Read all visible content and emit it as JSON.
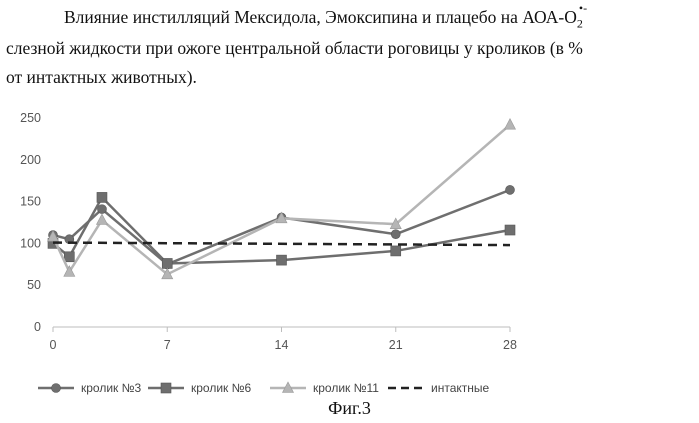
{
  "caption": {
    "line1_main": "Влияние инстилляций Мексидола, Эмоксипина и плацебо на АОА-О",
    "line1_sub": "2",
    "line1_sup": "•-",
    "line2": "слезной жидкости при ожоге центральной области роговицы у кроликов (в %",
    "line3": "от интактных животных)."
  },
  "figure_label": "Фиг.3",
  "chart_data": {
    "type": "line",
    "x": [
      0,
      1,
      3,
      7,
      14,
      21,
      28
    ],
    "xticks": [
      0,
      7,
      14,
      21,
      28
    ],
    "yticks": [
      0,
      50,
      100,
      150,
      200,
      250
    ],
    "xlim": [
      0,
      28
    ],
    "ylim": [
      0,
      250
    ],
    "grid": false,
    "legend_position": "bottom",
    "series": [
      {
        "name": "кролик №3",
        "marker": "circle",
        "color": "#6f6f6f",
        "dash": "solid",
        "points": [
          [
            0,
            110
          ],
          [
            1,
            105
          ],
          [
            3,
            141
          ],
          [
            7,
            75
          ],
          [
            14,
            131
          ],
          [
            21,
            111
          ],
          [
            28,
            164
          ]
        ]
      },
      {
        "name": "кролик №6",
        "marker": "square",
        "color": "#6e6e6e",
        "dash": "solid",
        "points": [
          [
            0,
            100
          ],
          [
            1,
            84
          ],
          [
            3,
            155
          ],
          [
            7,
            76
          ],
          [
            14,
            80
          ],
          [
            21,
            91
          ],
          [
            28,
            116
          ]
        ]
      },
      {
        "name": "кролик №11",
        "marker": "triangle",
        "color": "#b5b5b5",
        "dash": "solid",
        "points": [
          [
            0,
            108
          ],
          [
            1,
            66
          ],
          [
            3,
            128
          ],
          [
            7,
            63
          ],
          [
            14,
            130
          ],
          [
            21,
            123
          ],
          [
            28,
            242
          ]
        ]
      },
      {
        "name": "интактные",
        "marker": "none",
        "color": "#222222",
        "dash": "dashed",
        "points": [
          [
            0,
            101
          ],
          [
            28,
            98
          ]
        ]
      }
    ]
  }
}
